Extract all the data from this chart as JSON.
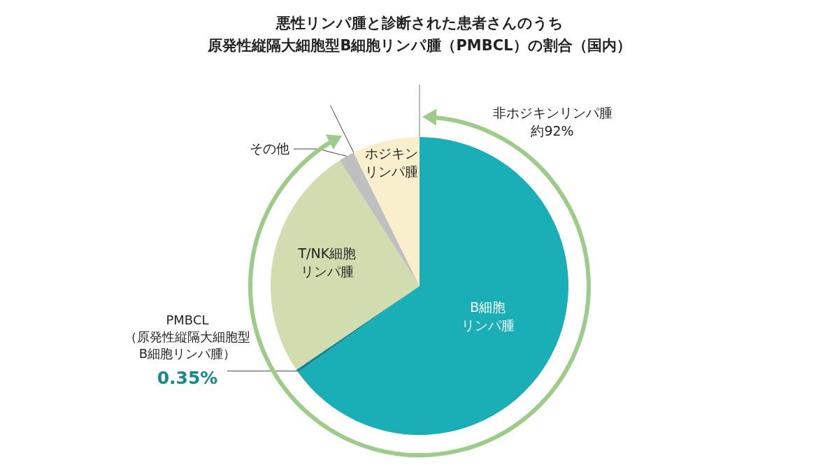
{
  "chart_data": {
    "type": "pie",
    "title": "悪性リンパ腫と診断された患者さんのうち原発性縦隔大細胞型B細胞リンパ腫（PMBCL）の割合（国内）",
    "categories": [
      "B細胞リンパ腫",
      "PMBCL（原発性縦隔大細胞型B細胞リンパ腫）",
      "T/NK細胞リンパ腫",
      "その他",
      "ホジキンリンパ腫"
    ],
    "values": [
      65.15,
      0.35,
      25.5,
      1.7,
      7.3
    ],
    "colors": [
      "#1aafb6",
      "#148a8f",
      "#d1dcaf",
      "#bfbfbf",
      "#faefcc"
    ],
    "value_labels": [
      null,
      "0.35%",
      null,
      null,
      null
    ],
    "annotations": [
      "非ホジキンリンパ腫約92%"
    ]
  }
}
